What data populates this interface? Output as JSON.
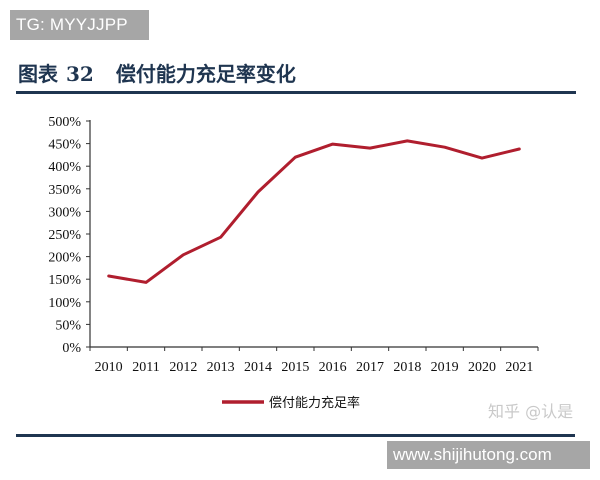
{
  "watermarks": {
    "top": "TG: MYYJJPP",
    "zhihu": "知乎 @认是",
    "bottom": "www.shijihutong.com"
  },
  "figure": {
    "label": "图表",
    "number": "32",
    "title": "偿付能力充足率变化"
  },
  "colors": {
    "line": "#b01e2e",
    "title": "#1f3550",
    "axis": "#333333"
  },
  "chart_data": {
    "type": "line",
    "title": "偿付能力充足率变化",
    "xlabel": "",
    "ylabel": "",
    "categories": [
      "2010",
      "2011",
      "2012",
      "2013",
      "2014",
      "2015",
      "2016",
      "2017",
      "2018",
      "2019",
      "2020",
      "2021"
    ],
    "series": [
      {
        "name": "偿付能力充足率",
        "values": [
          157,
          143,
          204,
          243,
          343,
          420,
          449,
          440,
          456,
          442,
          418,
          438
        ],
        "unit": "%"
      }
    ],
    "yticks": [
      "0%",
      "50%",
      "100%",
      "150%",
      "200%",
      "250%",
      "300%",
      "350%",
      "400%",
      "450%",
      "500%"
    ],
    "ylim": [
      0,
      500
    ],
    "grid": false,
    "legend_position": "bottom"
  }
}
